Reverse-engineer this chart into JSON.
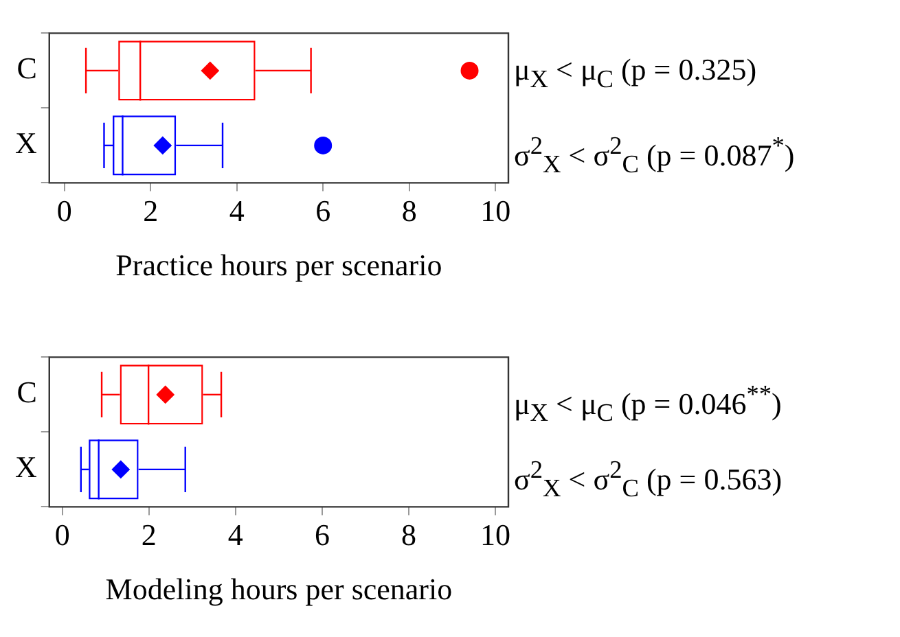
{
  "chart_data": [
    {
      "type": "box",
      "orientation": "horizontal",
      "categories": [
        "C",
        "X"
      ],
      "colors": [
        "#ff0000",
        "#0000ff"
      ],
      "xlabel": "Practice hours per scenario",
      "xlim": [
        -0.35,
        10.3
      ],
      "xticks": [
        0,
        2,
        4,
        6,
        8,
        10
      ],
      "boxes": [
        {
          "low": 0.5,
          "q1": 1.25,
          "median": 1.76,
          "q3": 4.43,
          "high": 5.72,
          "mean": 3.38,
          "outliers": [
            9.4
          ]
        },
        {
          "low": 0.92,
          "q1": 1.12,
          "median": 1.35,
          "q3": 2.59,
          "high": 3.67,
          "mean": 2.28,
          "outliers": [
            6.0
          ]
        }
      ],
      "annotations": [
        "μ$_{X}$ < μ$_{C}$ (p = 0.325)",
        "σ$^{2}$$_{X}$ < σ$^{2}$$_{C}$ (p = 0.087$^{*}$)"
      ]
    },
    {
      "type": "box",
      "orientation": "horizontal",
      "categories": [
        "C",
        "X"
      ],
      "colors": [
        "#ff0000",
        "#0000ff"
      ],
      "xlabel": "Modeling hours per scenario",
      "xlim": [
        -0.3,
        10.3
      ],
      "xticks": [
        0,
        2,
        4,
        6,
        8,
        10
      ],
      "boxes": [
        {
          "low": 0.91,
          "q1": 1.33,
          "median": 1.99,
          "q3": 3.25,
          "high": 3.67,
          "mean": 2.38
        },
        {
          "low": 0.43,
          "q1": 0.61,
          "median": 0.84,
          "q3": 1.76,
          "high": 2.84,
          "mean": 1.35
        }
      ],
      "annotations": [
        "μ$_{X}$ < μ$_{C}$ (p = 0.046$^{**}$)",
        "σ$^{2}$$_{X}$ < σ$^{2}$$_{C}$ (p = 0.563)"
      ]
    }
  ]
}
